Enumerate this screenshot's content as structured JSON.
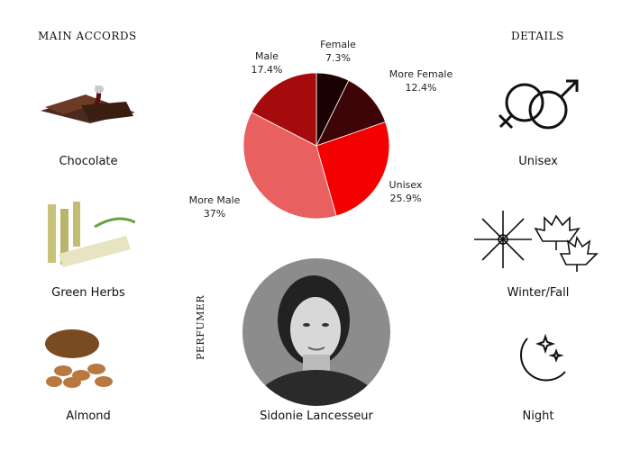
{
  "main_accords": {
    "heading": "MAIN ACCORDS",
    "items": [
      {
        "label": "Chocolate",
        "icon": "chocolate-image"
      },
      {
        "label": "Green Herbs",
        "icon": "sugarcane-image"
      },
      {
        "label": "Almond",
        "icon": "almond-image"
      }
    ]
  },
  "details": {
    "heading": "DETAILS",
    "items": [
      {
        "label": "Unisex",
        "icon": "gender-symbol-icon"
      },
      {
        "label": "Winter/Fall",
        "icon": "snowflake-leaf-icon"
      },
      {
        "label": "Night",
        "icon": "moon-stars-icon"
      }
    ]
  },
  "perfumer": {
    "heading": "PERFUMER",
    "name": "Sidonie Lancesseur"
  },
  "chart_data": {
    "type": "pie",
    "slices": [
      {
        "name": "Female",
        "value": 7.3,
        "label": "7.3%",
        "color": "#1c0202"
      },
      {
        "name": "More Female",
        "value": 12.4,
        "label": "12.4%",
        "color": "#3d0508"
      },
      {
        "name": "Unisex",
        "value": 25.9,
        "label": "25.9%",
        "color": "#f40000"
      },
      {
        "name": "More Male",
        "value": 37,
        "label": "37%",
        "color": "#e86060"
      },
      {
        "name": "Male",
        "value": 17.4,
        "label": "17.4%",
        "color": "#a50a0c"
      }
    ]
  }
}
